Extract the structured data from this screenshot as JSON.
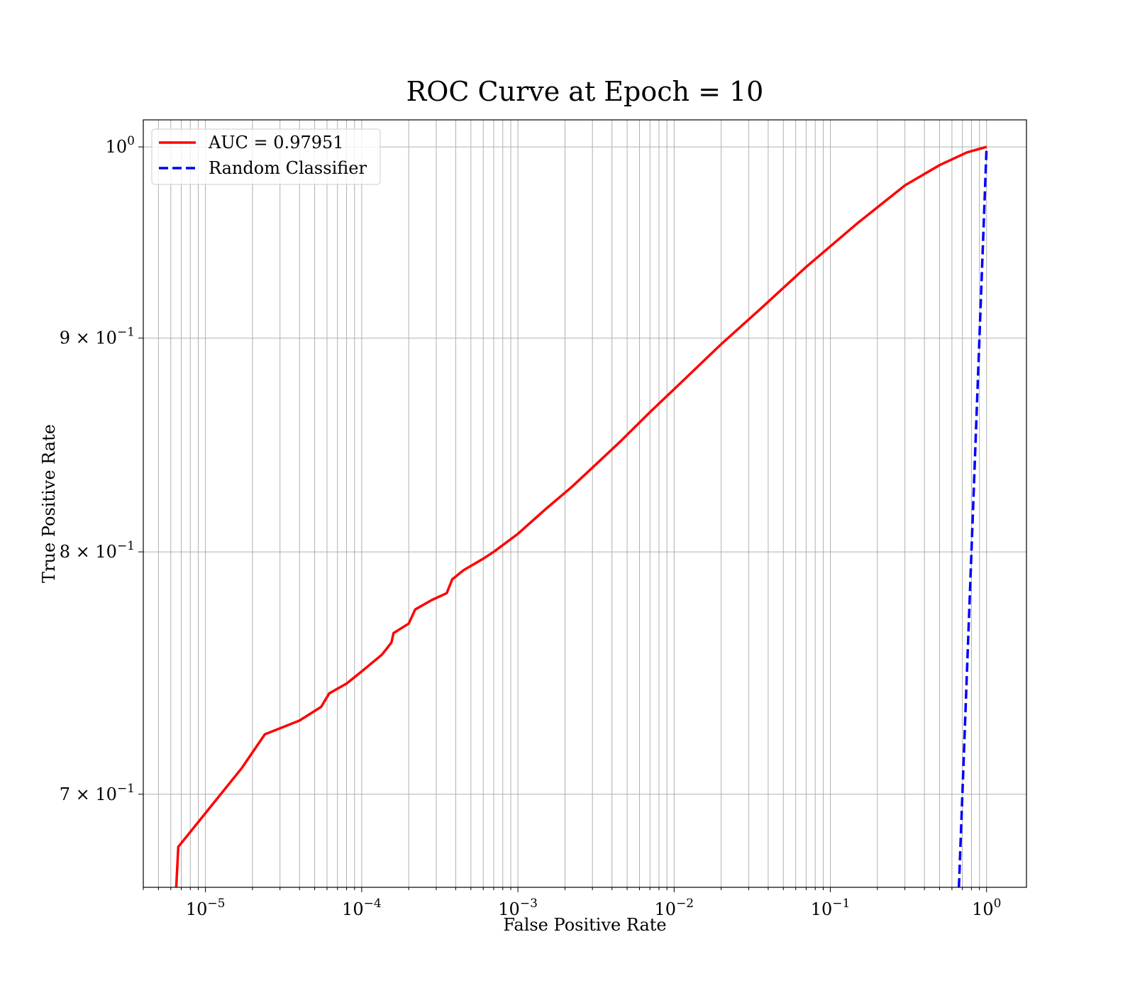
{
  "chart_data": {
    "type": "line",
    "title": "ROC Curve at Epoch = 10",
    "xlabel": "False Positive Rate",
    "ylabel": "True Positive Rate",
    "xscale": "log",
    "yscale": "log",
    "xlim": [
      4e-06,
      1.8
    ],
    "ylim": [
      0.665,
      1.015
    ],
    "grid": "both",
    "legend_position": "top-left",
    "xticks": [
      {
        "value": 1e-05,
        "base": "10",
        "exp": "−5"
      },
      {
        "value": 0.0001,
        "base": "10",
        "exp": "−4"
      },
      {
        "value": 0.001,
        "base": "10",
        "exp": "−3"
      },
      {
        "value": 0.01,
        "base": "10",
        "exp": "−2"
      },
      {
        "value": 0.1,
        "base": "10",
        "exp": "−1"
      },
      {
        "value": 1,
        "base": "10",
        "exp": "0"
      }
    ],
    "yticks": [
      {
        "value": 1.0,
        "base": "10",
        "exp": "0"
      },
      {
        "value": 0.9,
        "base": "9 × 10",
        "exp": "−1"
      },
      {
        "value": 0.8,
        "base": "8 × 10",
        "exp": "−1"
      },
      {
        "value": 0.7,
        "base": "7 × 10",
        "exp": "−1"
      }
    ],
    "series": [
      {
        "name": "AUC = 0.97951",
        "color": "#ff0000",
        "style": "solid",
        "x": [
          6.5e-06,
          6.7e-06,
          1.7e-05,
          2.4e-05,
          4e-05,
          5.5e-05,
          6.2e-05,
          8e-05,
          0.0001,
          0.000135,
          0.000155,
          0.00016,
          0.0002,
          0.00022,
          0.00028,
          0.00035,
          0.00038,
          0.00045,
          0.0006,
          0.0007,
          0.001,
          0.0015,
          0.0022,
          0.003,
          0.0045,
          0.007,
          0.011,
          0.02,
          0.035,
          0.07,
          0.15,
          0.3,
          0.5,
          0.75,
          1.0
        ],
        "y": [
          0.665,
          0.68,
          0.71,
          0.7235,
          0.729,
          0.7345,
          0.74,
          0.744,
          0.749,
          0.756,
          0.761,
          0.765,
          0.769,
          0.775,
          0.779,
          0.782,
          0.788,
          0.792,
          0.797,
          0.8,
          0.808,
          0.819,
          0.829,
          0.838,
          0.85,
          0.864,
          0.878,
          0.897,
          0.914,
          0.936,
          0.959,
          0.979,
          0.99,
          0.997,
          1.0
        ]
      },
      {
        "name": "Random Classifier",
        "color": "#0000ff",
        "style": "dashed",
        "x": [
          0.665,
          0.7,
          0.8,
          0.9,
          1.0
        ],
        "y": [
          0.665,
          0.7,
          0.8,
          0.9,
          1.0
        ]
      }
    ]
  }
}
